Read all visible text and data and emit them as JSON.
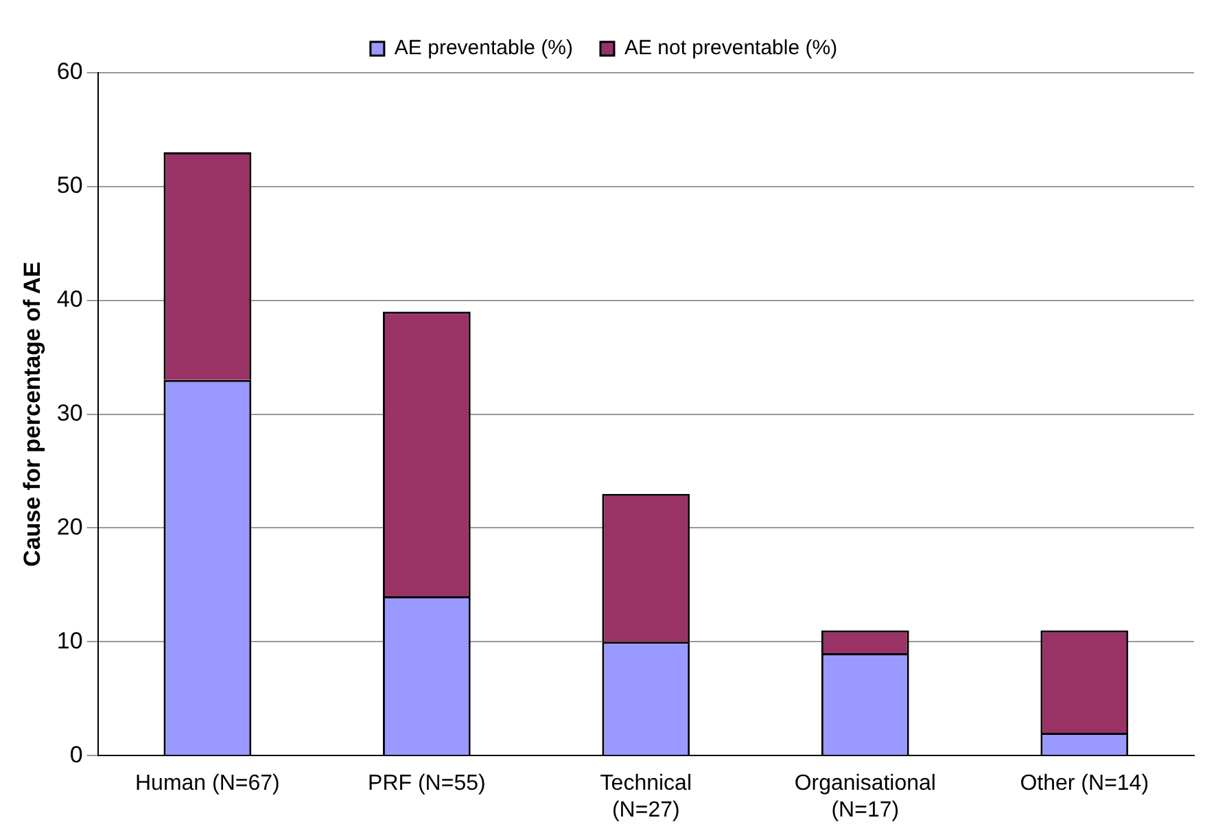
{
  "chart_data": {
    "type": "bar",
    "ylabel": "Cause for percentage of AE",
    "categories": [
      "Human (N=67)",
      "PRF (N=55)",
      "Technical (N=27)",
      "Organisational (N=17)",
      "Other (N=14)"
    ],
    "series": [
      {
        "name": "AE preventable (%)",
        "color": "#9999ff",
        "values": [
          33,
          14,
          10,
          9,
          2
        ]
      },
      {
        "name": "AE not preventable (%)",
        "color": "#993366",
        "values": [
          20,
          25,
          13,
          2,
          9
        ]
      }
    ],
    "stacked": true,
    "ylim": [
      0,
      60
    ],
    "yticks": [
      0,
      10,
      20,
      30,
      40,
      50,
      60
    ],
    "grid": "y",
    "legend": "top"
  }
}
